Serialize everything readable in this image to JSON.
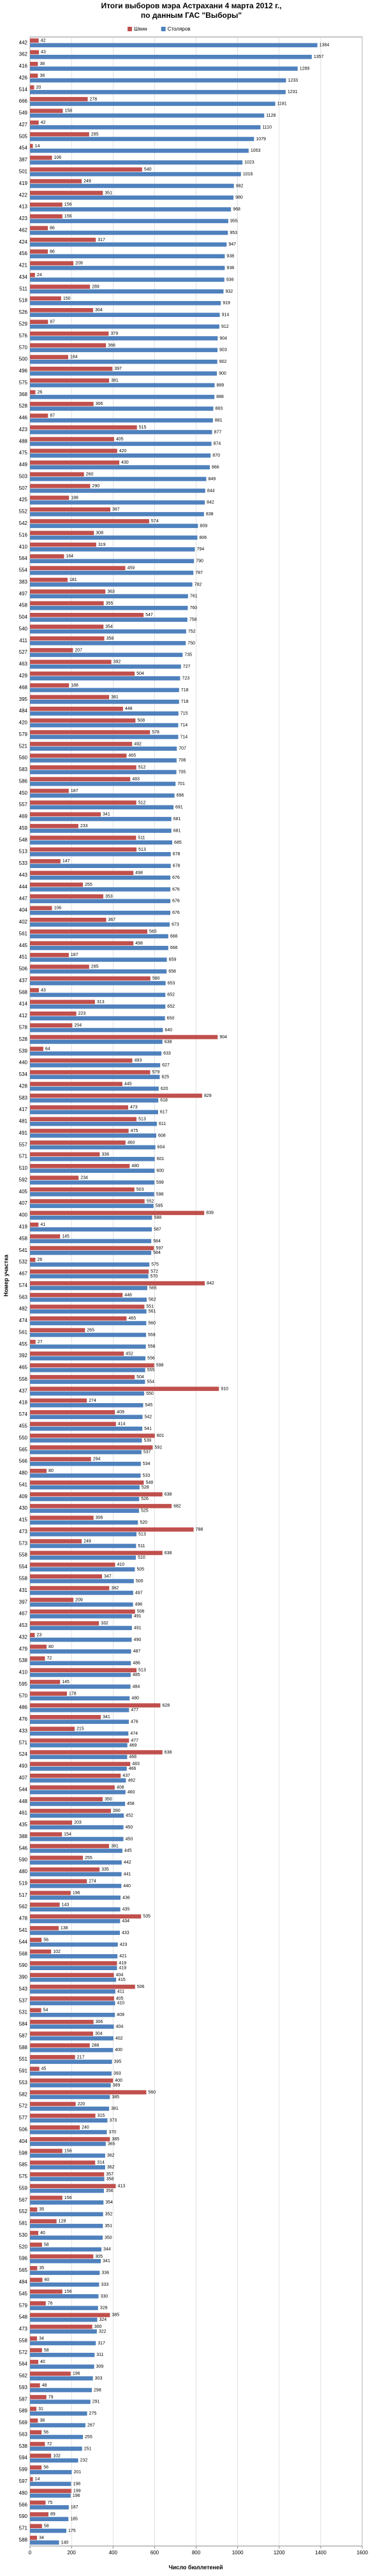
{
  "chart_data": {
    "type": "barh",
    "title": "Итоги выборов мэра Астрахани 4 марта 2012 г., по данным ГАС \"Выборы\"",
    "xlabel": "Число бюллетеней",
    "ylabel": "Номер участка",
    "xlim": [
      0,
      1600
    ],
    "xticks": [
      0,
      200,
      400,
      600,
      800,
      1000,
      1200,
      1400,
      1600
    ],
    "grid": true,
    "legend": "top",
    "categories": [
      "442",
      "362",
      "416",
      "426",
      "514",
      "666",
      "549",
      "427",
      "505",
      "454",
      "387",
      "501",
      "419",
      "422",
      "413",
      "423",
      "462",
      "424",
      "456",
      "421",
      "434",
      "511",
      "518",
      "526",
      "529",
      "576",
      "570",
      "500",
      "496",
      "575",
      "368",
      "528",
      "446",
      "423",
      "488",
      "475",
      "449",
      "503",
      "507",
      "425",
      "552",
      "542",
      "516",
      "410",
      "564",
      "554",
      "383",
      "497",
      "458",
      "504",
      "540",
      "411",
      "527",
      "463",
      "429",
      "468",
      "395",
      "484",
      "420",
      "579",
      "521",
      "560",
      "583",
      "586",
      "450",
      "557",
      "469",
      "459",
      "548",
      "513",
      "533",
      "443",
      "444",
      "447",
      "404",
      "402",
      "561",
      "445",
      "451",
      "506",
      "437",
      "568",
      "414",
      "412",
      "578",
      "528",
      "539",
      "440",
      "534",
      "428",
      "583",
      "417",
      "481",
      "491",
      "557",
      "571",
      "510",
      "592",
      "405",
      "407",
      "400",
      "419",
      "458",
      "541",
      "532",
      "467",
      "574",
      "563",
      "482",
      "474",
      "561",
      "455",
      "392",
      "465",
      "556",
      "437",
      "418",
      "574",
      "455",
      "550",
      "565",
      "566",
      "480",
      "541",
      "409",
      "430",
      "415",
      "473",
      "573",
      "558",
      "554",
      "558",
      "431",
      "397",
      "467",
      "453",
      "432",
      "479",
      "538",
      "410",
      "595",
      "570",
      "486",
      "476",
      "433",
      "571",
      "524",
      "493",
      "407",
      "544",
      "448",
      "461",
      "435",
      "388",
      "546",
      "590",
      "480",
      "519",
      "517",
      "562",
      "478",
      "541",
      "544",
      "568",
      "590",
      "390",
      "543",
      "537",
      "531",
      "584",
      "587",
      "588",
      "551",
      "591",
      "553",
      "582",
      "572",
      "577",
      "506",
      "404",
      "598",
      "585",
      "575",
      "559",
      "567",
      "552",
      "581",
      "530",
      "520",
      "596",
      "565",
      "484",
      "545",
      "579",
      "548",
      "473",
      "558",
      "572",
      "564",
      "562",
      "593",
      "587",
      "589",
      "569",
      "563",
      "538",
      "594",
      "599",
      "597",
      "480",
      "566",
      "590",
      "571",
      "588"
    ],
    "series": [
      {
        "name": "Шеин",
        "color": "#c0504d",
        "values": [
          42,
          43,
          38,
          38,
          20,
          278,
          158,
          42,
          285,
          14,
          106,
          540,
          249,
          351,
          156,
          156,
          86,
          317,
          86,
          209,
          24,
          289,
          150,
          304,
          87,
          379,
          366,
          184,
          397,
          381,
          26,
          306,
          87,
          515,
          405,
          420,
          430,
          260,
          290,
          188,
          387,
          574,
          308,
          319,
          164,
          459,
          181,
          363,
          355,
          547,
          354,
          358,
          207,
          392,
          504,
          188,
          381,
          448,
          508,
          578,
          492,
          465,
          512,
          483,
          187,
          512,
          341,
          233,
          511,
          513,
          147,
          498,
          255,
          353,
          106,
          367,
          565,
          498,
          187,
          285,
          580,
          43,
          313,
          223,
          204,
          904,
          64,
          493,
          579,
          445,
          829,
          473,
          513,
          475,
          460,
          336,
          480,
          234,
          503,
          552,
          839,
          41,
          145,
          597,
          26,
          572,
          842,
          446,
          551,
          465,
          265,
          27,
          452,
          598,
          504,
          910,
          274,
          409,
          414,
          601,
          591,
          294,
          80,
          548,
          638,
          682,
          306,
          788,
          249,
          638,
          410,
          347,
          382,
          209,
          506,
          332,
          23,
          80,
          72,
          513,
          145,
          178,
          628,
          341,
          215,
          477,
          638,
          483,
          437,
          408,
          350,
          390,
          203,
          154,
          381,
          255,
          335,
          274,
          196,
          143,
          535,
          138,
          56,
          102,
          419,
          404,
          506,
          405,
          54,
          306,
          304,
          288,
          217,
          45,
          400,
          560,
          220,
          315,
          240,
          385,
          156,
          314,
          357,
          413,
          156,
          35,
          128,
          40,
          58,
          305,
          35,
          60,
          156,
          76,
          385,
          300,
          34,
          58,
          40,
          196,
          48,
          79,
          31,
          38,
          56,
          72,
          102,
          56,
          14,
          199,
          75,
          89,
          58,
          34
        ]
      },
      {
        "name": "Столяров",
        "color": "#4f81bd",
        "values": [
          1384,
          1357,
          1289,
          1233,
          1231,
          1181,
          1128,
          1110,
          1079,
          1053,
          1023,
          1016,
          982,
          980,
          968,
          955,
          953,
          947,
          938,
          938,
          936,
          932,
          919,
          914,
          912,
          904,
          903,
          902,
          900,
          889,
          888,
          883,
          881,
          877,
          874,
          870,
          866,
          849,
          844,
          842,
          838,
          809,
          806,
          794,
          790,
          787,
          782,
          761,
          760,
          758,
          752,
          750,
          735,
          727,
          723,
          718,
          718,
          715,
          714,
          714,
          707,
          706,
          705,
          701,
          696,
          691,
          681,
          681,
          685,
          678,
          678,
          676,
          676,
          676,
          676,
          673,
          666,
          666,
          659,
          658,
          653,
          652,
          652,
          650,
          640,
          638,
          633,
          627,
          625,
          620,
          618,
          617,
          611,
          608,
          604,
          601,
          600,
          599,
          598,
          595,
          588,
          587,
          584,
          584,
          575,
          570,
          565,
          562,
          561,
          560,
          559,
          558,
          556,
          555,
          554,
          550,
          545,
          542,
          541,
          539,
          537,
          534,
          533,
          528,
          526,
          525,
          520,
          513,
          511,
          510,
          505,
          500,
          497,
          496,
          491,
          491,
          490,
          487,
          486,
          485,
          484,
          480,
          477,
          476,
          474,
          469,
          468,
          466,
          462,
          460,
          458,
          452,
          450,
          450,
          445,
          442,
          441,
          440,
          436,
          435,
          434,
          433,
          423,
          421,
          419,
          415,
          411,
          410,
          409,
          404,
          402,
          400,
          395,
          393,
          389,
          385,
          381,
          373,
          370,
          365,
          362,
          362,
          358,
          356,
          354,
          352,
          351,
          350,
          344,
          341,
          336,
          333,
          330,
          328,
          324,
          322,
          317,
          311,
          309,
          303,
          298,
          291,
          275,
          267,
          255,
          251,
          232,
          201,
          198,
          196,
          187,
          185,
          175,
          140
        ]
      }
    ]
  }
}
